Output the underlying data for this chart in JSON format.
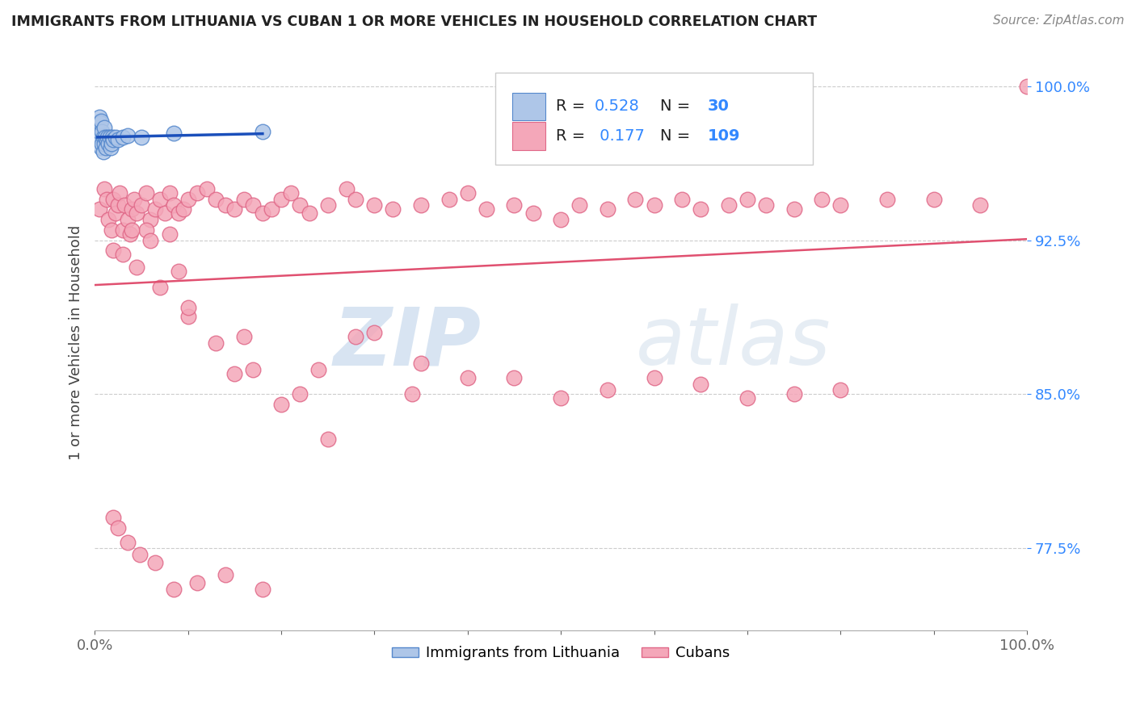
{
  "title": "IMMIGRANTS FROM LITHUANIA VS CUBAN 1 OR MORE VEHICLES IN HOUSEHOLD CORRELATION CHART",
  "source": "Source: ZipAtlas.com",
  "ylabel": "1 or more Vehicles in Household",
  "xlim": [
    0.0,
    1.0
  ],
  "ylim": [
    0.735,
    1.015
  ],
  "yticks": [
    0.775,
    0.85,
    0.925,
    1.0
  ],
  "ytick_labels": [
    "77.5%",
    "85.0%",
    "92.5%",
    "100.0%"
  ],
  "xticks": [
    0.0,
    0.1,
    0.2,
    0.3,
    0.4,
    0.5,
    0.6,
    0.7,
    0.8,
    0.9,
    1.0
  ],
  "xtick_labels": [
    "0.0%",
    "",
    "",
    "",
    "",
    "",
    "",
    "",
    "",
    "",
    "100.0%"
  ],
  "lithuania_color": "#aec6e8",
  "cuban_color": "#f4a7b9",
  "lithuania_edge": "#5588cc",
  "cuban_edge": "#e06888",
  "trendline_lithuania_color": "#1a4fbb",
  "trendline_cuban_color": "#e05070",
  "R_lithuania": 0.528,
  "N_lithuania": 30,
  "R_cuban": 0.177,
  "N_cuban": 109,
  "watermark_zip": "ZIP",
  "watermark_atlas": "atlas",
  "grid_color": "#cccccc",
  "lith_x": [
    0.003,
    0.004,
    0.005,
    0.005,
    0.006,
    0.007,
    0.007,
    0.008,
    0.008,
    0.009,
    0.009,
    0.01,
    0.01,
    0.011,
    0.012,
    0.013,
    0.014,
    0.015,
    0.016,
    0.017,
    0.018,
    0.019,
    0.02,
    0.022,
    0.025,
    0.03,
    0.035,
    0.05,
    0.085,
    0.18
  ],
  "lith_y": [
    0.98,
    0.975,
    0.985,
    0.978,
    0.982,
    0.97,
    0.983,
    0.972,
    0.978,
    0.968,
    0.975,
    0.972,
    0.98,
    0.975,
    0.97,
    0.974,
    0.975,
    0.972,
    0.975,
    0.97,
    0.972,
    0.975,
    0.974,
    0.975,
    0.974,
    0.975,
    0.976,
    0.975,
    0.977,
    0.978
  ],
  "cuban_x": [
    0.005,
    0.01,
    0.013,
    0.015,
    0.018,
    0.02,
    0.022,
    0.025,
    0.027,
    0.03,
    0.032,
    0.035,
    0.038,
    0.04,
    0.042,
    0.045,
    0.05,
    0.055,
    0.06,
    0.065,
    0.07,
    0.075,
    0.08,
    0.085,
    0.09,
    0.095,
    0.1,
    0.11,
    0.12,
    0.13,
    0.14,
    0.15,
    0.16,
    0.17,
    0.18,
    0.19,
    0.2,
    0.21,
    0.22,
    0.23,
    0.25,
    0.27,
    0.28,
    0.3,
    0.32,
    0.35,
    0.38,
    0.4,
    0.42,
    0.45,
    0.47,
    0.5,
    0.52,
    0.55,
    0.58,
    0.6,
    0.63,
    0.65,
    0.68,
    0.7,
    0.72,
    0.75,
    0.78,
    0.8,
    0.85,
    0.9,
    0.95,
    1.0,
    0.055,
    0.08,
    0.1,
    0.15,
    0.2,
    0.25,
    0.3,
    0.4,
    0.5,
    0.6,
    0.7,
    0.8,
    0.04,
    0.06,
    0.09,
    0.13,
    0.17,
    0.22,
    0.28,
    0.35,
    0.45,
    0.55,
    0.65,
    0.75,
    0.02,
    0.03,
    0.045,
    0.07,
    0.1,
    0.16,
    0.24,
    0.34,
    0.02,
    0.025,
    0.035,
    0.048,
    0.065,
    0.085,
    0.11,
    0.14,
    0.18
  ],
  "cuban_y": [
    0.94,
    0.95,
    0.945,
    0.935,
    0.93,
    0.945,
    0.938,
    0.942,
    0.948,
    0.93,
    0.942,
    0.935,
    0.928,
    0.94,
    0.945,
    0.938,
    0.942,
    0.948,
    0.935,
    0.94,
    0.945,
    0.938,
    0.948,
    0.942,
    0.938,
    0.94,
    0.945,
    0.948,
    0.95,
    0.945,
    0.942,
    0.94,
    0.945,
    0.942,
    0.938,
    0.94,
    0.945,
    0.948,
    0.942,
    0.938,
    0.942,
    0.95,
    0.945,
    0.942,
    0.94,
    0.942,
    0.945,
    0.948,
    0.94,
    0.942,
    0.938,
    0.935,
    0.942,
    0.94,
    0.945,
    0.942,
    0.945,
    0.94,
    0.942,
    0.945,
    0.942,
    0.94,
    0.945,
    0.942,
    0.945,
    0.945,
    0.942,
    1.0,
    0.93,
    0.928,
    0.888,
    0.86,
    0.845,
    0.828,
    0.88,
    0.858,
    0.848,
    0.858,
    0.848,
    0.852,
    0.93,
    0.925,
    0.91,
    0.875,
    0.862,
    0.85,
    0.878,
    0.865,
    0.858,
    0.852,
    0.855,
    0.85,
    0.92,
    0.918,
    0.912,
    0.902,
    0.892,
    0.878,
    0.862,
    0.85,
    0.79,
    0.785,
    0.778,
    0.772,
    0.768,
    0.755,
    0.758,
    0.762,
    0.755
  ]
}
